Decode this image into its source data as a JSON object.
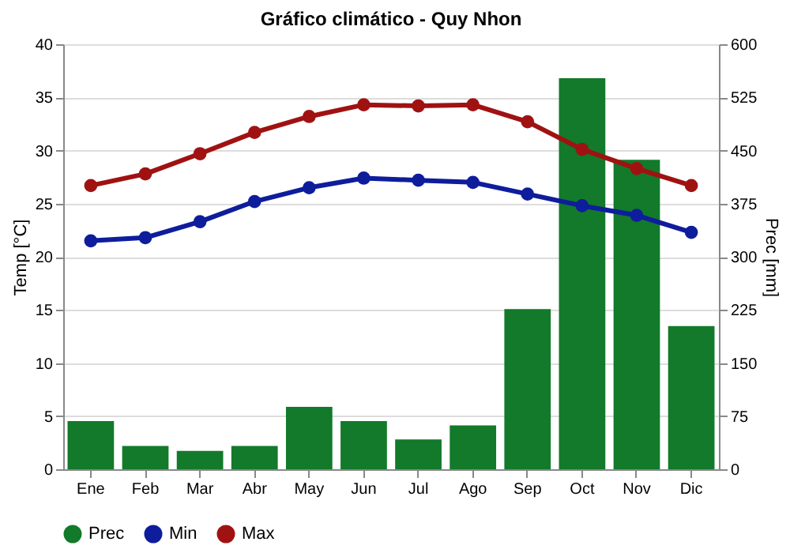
{
  "chart_data": {
    "type": "line",
    "title": "Gráfico climático - Quy Nhon",
    "ylabel": "Temp [°C]",
    "y2label": "Prec [mm]",
    "categories": [
      "Ene",
      "Feb",
      "Mar",
      "Abr",
      "May",
      "Jun",
      "Jul",
      "Ago",
      "Sep",
      "Oct",
      "Nov",
      "Dic"
    ],
    "series": [
      {
        "name": "Prec",
        "type": "bar",
        "axis": "y2",
        "color": "#127a2a",
        "values": [
          68,
          33,
          26,
          33,
          88,
          68,
          42,
          62,
          226,
          552,
          437,
          202
        ]
      },
      {
        "name": "Min",
        "color": "#0e1d9c",
        "values": [
          21.5,
          21.8,
          23.3,
          25.2,
          26.5,
          27.4,
          27.2,
          27.0,
          25.9,
          24.8,
          23.9,
          22.3
        ]
      },
      {
        "name": "Max",
        "color": "#a01212",
        "values": [
          26.7,
          27.8,
          29.7,
          31.7,
          33.2,
          34.3,
          34.2,
          34.3,
          32.7,
          30.1,
          28.3,
          26.7
        ]
      }
    ],
    "ylim": [
      0,
      40
    ],
    "yticks": [
      0,
      5,
      10,
      15,
      20,
      25,
      30,
      35,
      40
    ],
    "y2lim": [
      0,
      600
    ],
    "y2ticks": [
      0,
      75,
      150,
      225,
      300,
      375,
      450,
      525,
      600
    ],
    "grid": "y",
    "legend": "bottom",
    "marker": "circle",
    "line_style": "solid"
  }
}
